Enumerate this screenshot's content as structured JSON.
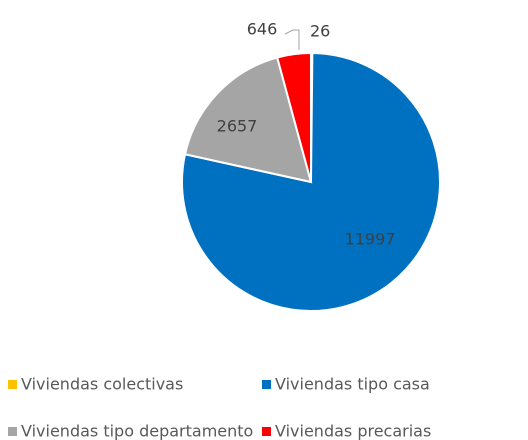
{
  "chart_data": {
    "type": "pie",
    "categories": [
      "Viviendas colectivas",
      "Viviendas tipo casa",
      "Viviendas tipo departamento",
      "Viviendas precarias"
    ],
    "values": [
      26,
      11997,
      2657,
      646
    ],
    "colors": [
      "#ffc000",
      "#0070c0",
      "#a5a5a5",
      "#ff0000"
    ],
    "legend": "bottom"
  }
}
